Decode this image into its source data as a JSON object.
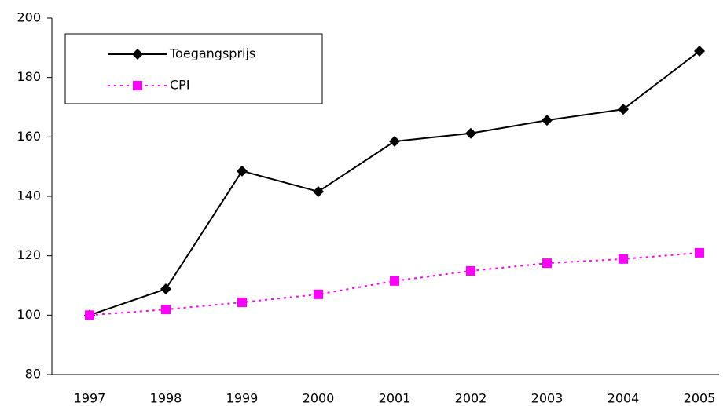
{
  "chart_data": {
    "type": "line",
    "categories": [
      "1997",
      "1998",
      "1999",
      "2000",
      "2001",
      "2002",
      "2003",
      "2004",
      "2005"
    ],
    "series": [
      {
        "name": "Toegangsprijs",
        "color": "#000000",
        "marker": "diamond",
        "dash": "solid",
        "values": [
          100,
          108.8,
          148.5,
          141.6,
          158.5,
          161.2,
          165.6,
          169.3,
          188.9
        ]
      },
      {
        "name": "CPI",
        "color": "#ff00ff",
        "marker": "square",
        "dash": "dotted",
        "values": [
          100,
          101.9,
          104.3,
          107,
          111.5,
          114.9,
          117.5,
          118.9,
          121
        ]
      }
    ],
    "ylim": [
      80,
      200
    ],
    "yticks": [
      80,
      100,
      120,
      140,
      160,
      180,
      200
    ],
    "grid": false,
    "legend": "upper-left"
  }
}
